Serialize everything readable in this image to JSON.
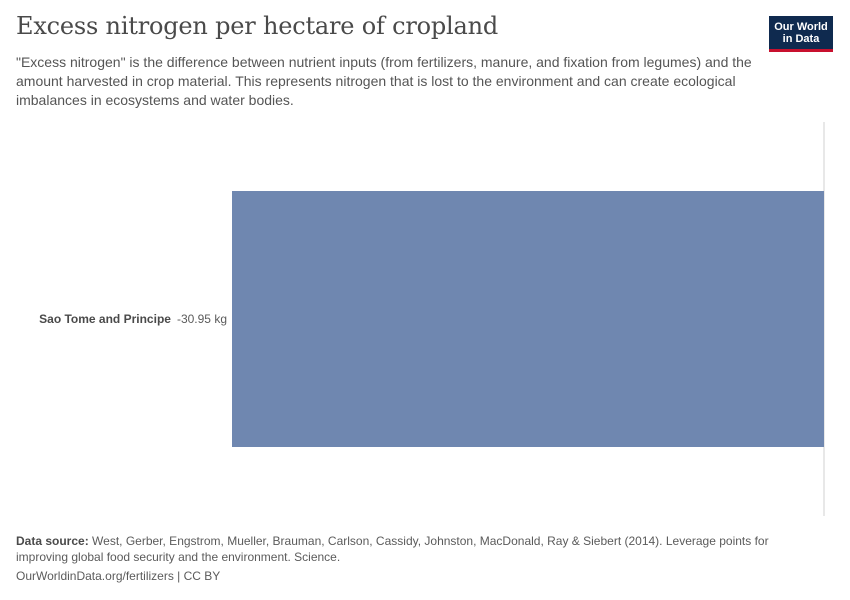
{
  "header": {
    "title": "Excess nitrogen per hectare of cropland",
    "subtitle": "\"Excess nitrogen\" is the difference between nutrient inputs (from fertilizers, manure, and fixation from legumes) and the amount harvested in crop material. This represents nitrogen that is lost to the environment and can create ecological imbalances in ecosystems and water bodies."
  },
  "logo": {
    "line1": "Our World",
    "line2": "in Data"
  },
  "chart_data": {
    "type": "bar",
    "orientation": "horizontal",
    "categories": [
      "Sao Tome and Principe"
    ],
    "values": [
      -30.95
    ],
    "value_labels": [
      "-30.95 kg"
    ],
    "unit": "kg",
    "xlim": [
      -30.95,
      0
    ],
    "colors": {
      "bar": "#6f87b0",
      "axis": "#d0d0d0"
    }
  },
  "footer": {
    "source_label": "Data source:",
    "source_text": "West, Gerber, Engstrom, Mueller, Brauman, Carlson, Cassidy, Johnston, MacDonald, Ray & Siebert (2014). Leverage points for improving global food security and the environment. Science.",
    "license": "OurWorldinData.org/fertilizers | CC BY"
  }
}
